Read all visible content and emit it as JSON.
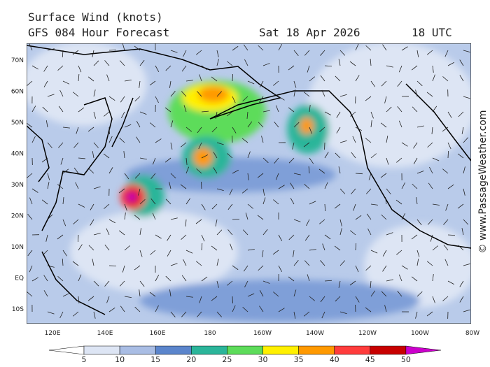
{
  "header": {
    "title": "Surface Wind (knots)",
    "model": "GFS 084 Hour Forecast",
    "date": "Sat 18 Apr 2026",
    "time": "18 UTC"
  },
  "map": {
    "lat_labels": [
      "70N",
      "60N",
      "50N",
      "40N",
      "30N",
      "20N",
      "10N",
      "EQ",
      "10S"
    ],
    "lon_labels": [
      "120E",
      "140E",
      "160E",
      "180",
      "160W",
      "140W",
      "120W",
      "100W",
      "80W"
    ]
  },
  "colorbar": {
    "ticks": [
      5,
      10,
      15,
      20,
      25,
      30,
      35,
      40,
      45,
      50
    ],
    "colors": [
      "#ffffff",
      "#dde5f4",
      "#a9bde4",
      "#5b85cc",
      "#2bb59a",
      "#5ddc5a",
      "#fff000",
      "#ff9900",
      "#ff3c3c",
      "#c80000",
      "#cc00cc"
    ]
  },
  "credit": "© www.PassageWeather.com"
}
